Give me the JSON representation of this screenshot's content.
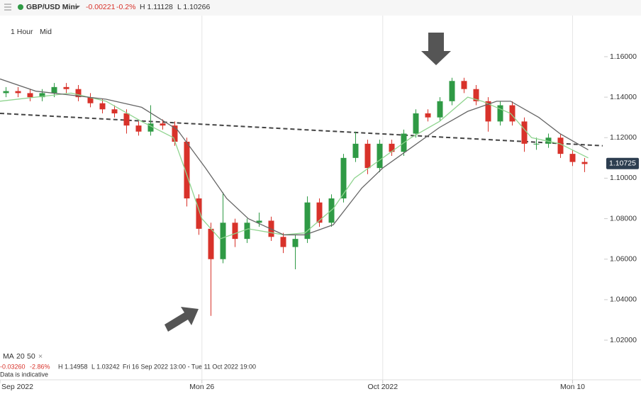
{
  "toolbar": {
    "instrument": "GBP/USD Mini",
    "change": "-0.00221",
    "change_pct": "-0.2%",
    "high": "H 1.11128",
    "low": "L 1.10266",
    "interval": "1 Hour",
    "price_type": "Mid"
  },
  "indicator": {
    "label": "MA",
    "period_1": "20",
    "period_2": "50",
    "close": "×",
    "change": "-0.03260",
    "change_pct": "-2.86%",
    "high": "H 1.14958",
    "low": "L 1.03242",
    "range": "Fri 16 Sep 2022 13:00 - Tue 11 Oct 2022 19:00",
    "note": "Data is indicative"
  },
  "chart_data": {
    "type": "candlestick",
    "x": [
      1,
      3,
      5,
      7,
      9,
      11,
      13,
      15,
      17,
      19,
      21,
      23,
      25,
      27,
      29,
      31,
      33,
      35,
      37,
      39,
      41,
      43,
      45,
      47,
      49,
      51,
      53,
      55,
      57,
      59,
      61,
      63,
      65,
      67,
      69,
      71,
      73,
      75,
      77,
      79,
      81,
      83,
      85,
      87,
      89,
      91,
      93,
      95,
      97
    ],
    "open": [
      1.142,
      1.143,
      1.142,
      1.14,
      1.142,
      1.145,
      1.144,
      1.14,
      1.137,
      1.134,
      1.132,
      1.126,
      1.123,
      1.127,
      1.126,
      1.118,
      1.09,
      1.075,
      1.06,
      1.078,
      1.07,
      1.078,
      1.079,
      1.071,
      1.066,
      1.07,
      1.088,
      1.078,
      1.09,
      1.11,
      1.117,
      1.105,
      1.117,
      1.113,
      1.122,
      1.132,
      1.13,
      1.138,
      1.148,
      1.144,
      1.138,
      1.128,
      1.136,
      1.128,
      1.117,
      1.117,
      1.12,
      1.112,
      1.108
    ],
    "high": [
      1.145,
      1.145,
      1.144,
      1.144,
      1.147,
      1.147,
      1.146,
      1.142,
      1.139,
      1.136,
      1.134,
      1.128,
      1.136,
      1.129,
      1.128,
      1.12,
      1.092,
      1.078,
      1.093,
      1.08,
      1.08,
      1.083,
      1.081,
      1.073,
      1.072,
      1.091,
      1.09,
      1.092,
      1.112,
      1.123,
      1.119,
      1.119,
      1.119,
      1.124,
      1.134,
      1.134,
      1.14,
      1.1496,
      1.1496,
      1.146,
      1.14,
      1.138,
      1.138,
      1.13,
      1.12,
      1.122,
      1.122,
      1.114,
      1.11
    ],
    "low": [
      1.14,
      1.14,
      1.138,
      1.138,
      1.14,
      1.142,
      1.138,
      1.135,
      1.132,
      1.13,
      1.122,
      1.121,
      1.121,
      1.124,
      1.116,
      1.086,
      1.072,
      1.032,
      1.058,
      1.066,
      1.068,
      1.076,
      1.069,
      1.063,
      1.055,
      1.068,
      1.076,
      1.076,
      1.088,
      1.108,
      1.102,
      1.103,
      1.111,
      1.111,
      1.12,
      1.128,
      1.128,
      1.136,
      1.142,
      1.136,
      1.123,
      1.126,
      1.126,
      1.113,
      1.114,
      1.115,
      1.11,
      1.106,
      1.103
    ],
    "close": [
      1.143,
      1.142,
      1.14,
      1.142,
      1.145,
      1.144,
      1.14,
      1.137,
      1.134,
      1.132,
      1.126,
      1.123,
      1.127,
      1.126,
      1.118,
      1.09,
      1.075,
      1.06,
      1.078,
      1.07,
      1.078,
      1.079,
      1.071,
      1.066,
      1.07,
      1.088,
      1.078,
      1.09,
      1.11,
      1.117,
      1.105,
      1.117,
      1.113,
      1.122,
      1.132,
      1.13,
      1.138,
      1.148,
      1.144,
      1.138,
      1.128,
      1.136,
      1.128,
      1.117,
      1.117,
      1.12,
      1.112,
      1.108,
      1.107
    ],
    "up_color": "#2f9a45",
    "down_color": "#d8322a",
    "series": [
      {
        "name": "MA 20",
        "color": "#8fd48f",
        "x": [
          0,
          11.8,
          17.6,
          23.5,
          28.8,
          30.6,
          33.5,
          36.5,
          41.2,
          47.1,
          50.6,
          55.3,
          58.8,
          63.5,
          68.2,
          72.9,
          77.6,
          80,
          84.7,
          88.2,
          92.9,
          97.6
        ],
        "values": [
          1.138,
          1.142,
          1.138,
          1.128,
          1.12,
          1.105,
          1.08,
          1.07,
          1.075,
          1.072,
          1.073,
          1.085,
          1.1,
          1.11,
          1.12,
          1.128,
          1.14,
          1.138,
          1.132,
          1.12,
          1.117,
          1.11
        ]
      },
      {
        "name": "MA 50",
        "color": "#666666",
        "x": [
          0,
          5.9,
          11.8,
          17.6,
          23.5,
          29.4,
          34.1,
          37.6,
          41.2,
          47.1,
          50.6,
          55.3,
          60,
          63.5,
          68.2,
          72.9,
          77.6,
          82.4,
          84.7,
          89.4,
          92.9,
          97.6
        ],
        "values": [
          1.149,
          1.143,
          1.141,
          1.139,
          1.135,
          1.124,
          1.105,
          1.09,
          1.08,
          1.072,
          1.072,
          1.077,
          1.095,
          1.105,
          1.115,
          1.125,
          1.133,
          1.138,
          1.138,
          1.13,
          1.122,
          1.114
        ]
      }
    ],
    "trendline": {
      "x": [
        0,
        100
      ],
      "values": [
        1.132,
        1.116
      ]
    },
    "last_price": {
      "value": 1.10725,
      "label": "1.10725"
    },
    "xlim": [
      0,
      100
    ],
    "ylim": [
      1.01,
      1.17
    ],
    "xticks": [
      {
        "value": 0,
        "label": "Sep 2022"
      },
      {
        "value": 33.5,
        "label": "Mon 26"
      },
      {
        "value": 63.5,
        "label": "Oct 2022"
      },
      {
        "value": 95,
        "label": "Mon 10"
      }
    ],
    "yticks": [
      {
        "value": 1.16,
        "label": "1.16000"
      },
      {
        "value": 1.14,
        "label": "1.14000"
      },
      {
        "value": 1.12,
        "label": "1.12000"
      },
      {
        "value": 1.1,
        "label": "1.10000"
      },
      {
        "value": 1.08,
        "label": "1.08000"
      },
      {
        "value": 1.06,
        "label": "1.06000"
      },
      {
        "value": 1.04,
        "label": "1.04000"
      },
      {
        "value": 1.02,
        "label": "1.02000"
      }
    ]
  }
}
